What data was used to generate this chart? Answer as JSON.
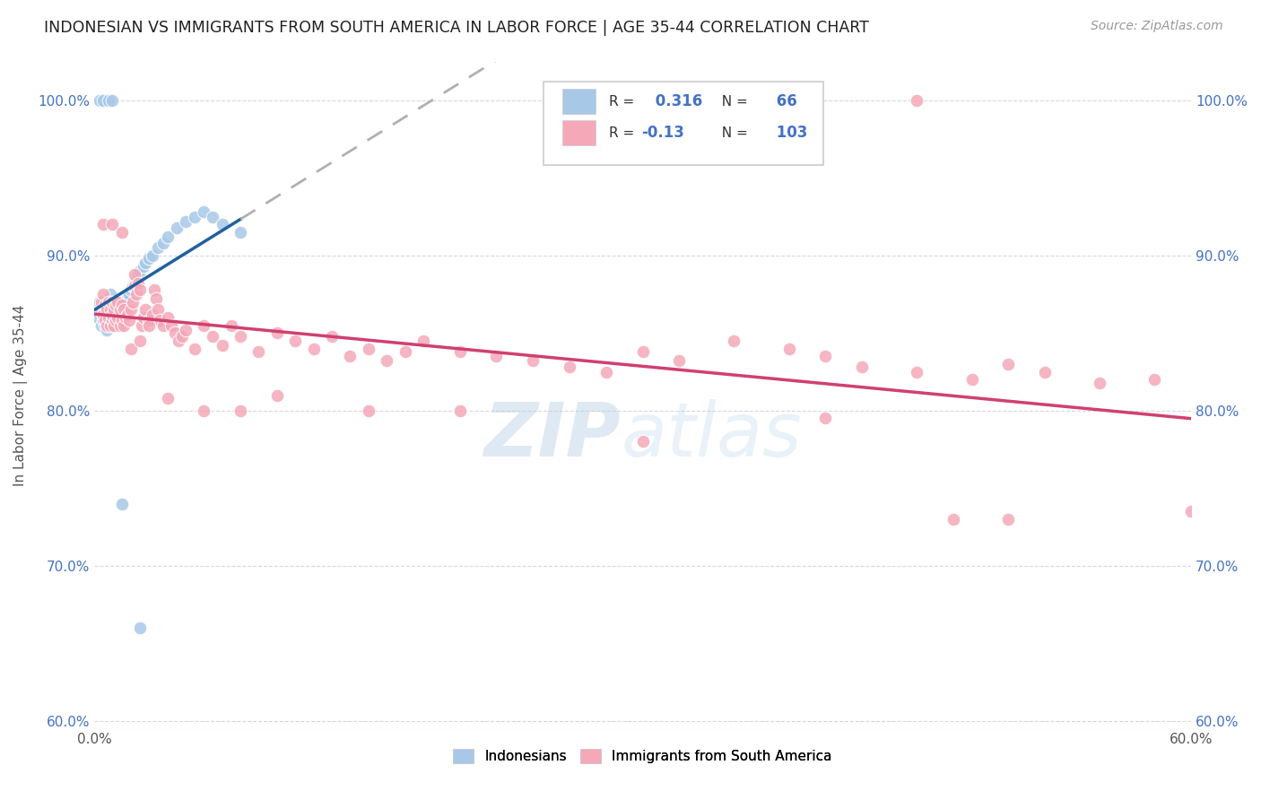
{
  "title": "INDONESIAN VS IMMIGRANTS FROM SOUTH AMERICA IN LABOR FORCE | AGE 35-44 CORRELATION CHART",
  "source": "Source: ZipAtlas.com",
  "ylabel": "In Labor Force | Age 35-44",
  "xlim": [
    0.0,
    0.6
  ],
  "ylim": [
    0.595,
    1.025
  ],
  "yticks": [
    0.6,
    0.7,
    0.8,
    0.9,
    1.0
  ],
  "ytick_labels": [
    "60.0%",
    "70.0%",
    "80.0%",
    "90.0%",
    "100.0%"
  ],
  "xticks": [
    0.0,
    0.1,
    0.2,
    0.3,
    0.4,
    0.5,
    0.6
  ],
  "xtick_labels": [
    "0.0%",
    "",
    "",
    "",
    "",
    "",
    "60.0%"
  ],
  "blue_R": 0.316,
  "blue_N": 66,
  "pink_R": -0.13,
  "pink_N": 103,
  "blue_color": "#a8c8e8",
  "pink_color": "#f4a8b8",
  "blue_line_color": "#2060a0",
  "pink_line_color": "#d04070",
  "dashed_line_color": "#b0b0b0",
  "background_color": "#ffffff",
  "grid_color": "#d8d8d8",
  "axis_color": "#4472c4",
  "title_color": "#222222",
  "blue_x": [
    0.002,
    0.003,
    0.004,
    0.004,
    0.005,
    0.005,
    0.005,
    0.006,
    0.006,
    0.007,
    0.007,
    0.007,
    0.008,
    0.008,
    0.008,
    0.009,
    0.009,
    0.009,
    0.009,
    0.01,
    0.01,
    0.01,
    0.01,
    0.011,
    0.011,
    0.011,
    0.012,
    0.012,
    0.012,
    0.013,
    0.013,
    0.014,
    0.014,
    0.015,
    0.015,
    0.016,
    0.016,
    0.017,
    0.018,
    0.019,
    0.02,
    0.021,
    0.022,
    0.023,
    0.024,
    0.025,
    0.027,
    0.028,
    0.03,
    0.032,
    0.035,
    0.038,
    0.04,
    0.045,
    0.05,
    0.055,
    0.06,
    0.065,
    0.07,
    0.08,
    0.003,
    0.005,
    0.008,
    0.01,
    0.015,
    0.025
  ],
  "blue_y": [
    0.86,
    0.87,
    0.855,
    0.865,
    0.858,
    0.862,
    0.87,
    0.855,
    0.865,
    0.852,
    0.86,
    0.868,
    0.855,
    0.862,
    0.87,
    0.855,
    0.86,
    0.865,
    0.875,
    0.855,
    0.86,
    0.865,
    0.87,
    0.858,
    0.862,
    0.868,
    0.855,
    0.86,
    0.87,
    0.86,
    0.865,
    0.862,
    0.87,
    0.858,
    0.865,
    0.86,
    0.868,
    0.87,
    0.872,
    0.875,
    0.878,
    0.88,
    0.882,
    0.885,
    0.888,
    0.89,
    0.893,
    0.895,
    0.898,
    0.9,
    0.905,
    0.908,
    0.912,
    0.918,
    0.922,
    0.925,
    0.928,
    0.925,
    0.92,
    0.915,
    1.0,
    1.0,
    1.0,
    1.0,
    0.74,
    0.66
  ],
  "pink_x": [
    0.004,
    0.005,
    0.005,
    0.006,
    0.006,
    0.007,
    0.007,
    0.008,
    0.008,
    0.009,
    0.009,
    0.01,
    0.01,
    0.01,
    0.011,
    0.011,
    0.012,
    0.012,
    0.013,
    0.013,
    0.014,
    0.014,
    0.015,
    0.015,
    0.016,
    0.016,
    0.017,
    0.018,
    0.019,
    0.02,
    0.021,
    0.022,
    0.022,
    0.023,
    0.024,
    0.025,
    0.026,
    0.027,
    0.028,
    0.03,
    0.032,
    0.033,
    0.034,
    0.035,
    0.036,
    0.038,
    0.04,
    0.042,
    0.044,
    0.046,
    0.048,
    0.05,
    0.055,
    0.06,
    0.065,
    0.07,
    0.075,
    0.08,
    0.09,
    0.1,
    0.11,
    0.12,
    0.13,
    0.14,
    0.15,
    0.16,
    0.17,
    0.18,
    0.2,
    0.22,
    0.24,
    0.26,
    0.28,
    0.3,
    0.32,
    0.35,
    0.38,
    0.4,
    0.42,
    0.45,
    0.48,
    0.5,
    0.52,
    0.55,
    0.58,
    0.005,
    0.01,
    0.015,
    0.02,
    0.025,
    0.03,
    0.04,
    0.06,
    0.08,
    0.1,
    0.15,
    0.2,
    0.3,
    0.4,
    0.5,
    0.45,
    0.47,
    0.6
  ],
  "pink_y": [
    0.87,
    0.862,
    0.875,
    0.858,
    0.868,
    0.855,
    0.865,
    0.86,
    0.87,
    0.855,
    0.865,
    0.858,
    0.862,
    0.87,
    0.855,
    0.865,
    0.858,
    0.868,
    0.86,
    0.87,
    0.855,
    0.865,
    0.858,
    0.868,
    0.855,
    0.865,
    0.86,
    0.862,
    0.858,
    0.865,
    0.87,
    0.88,
    0.888,
    0.875,
    0.882,
    0.878,
    0.855,
    0.86,
    0.865,
    0.858,
    0.862,
    0.878,
    0.872,
    0.865,
    0.858,
    0.855,
    0.86,
    0.855,
    0.85,
    0.845,
    0.848,
    0.852,
    0.84,
    0.855,
    0.848,
    0.842,
    0.855,
    0.848,
    0.838,
    0.85,
    0.845,
    0.84,
    0.848,
    0.835,
    0.84,
    0.832,
    0.838,
    0.845,
    0.838,
    0.835,
    0.832,
    0.828,
    0.825,
    0.838,
    0.832,
    0.845,
    0.84,
    0.835,
    0.828,
    0.825,
    0.82,
    0.83,
    0.825,
    0.818,
    0.82,
    0.92,
    0.92,
    0.915,
    0.84,
    0.845,
    0.855,
    0.808,
    0.8,
    0.8,
    0.81,
    0.8,
    0.8,
    0.78,
    0.795,
    0.73,
    1.0,
    0.73,
    0.735
  ]
}
